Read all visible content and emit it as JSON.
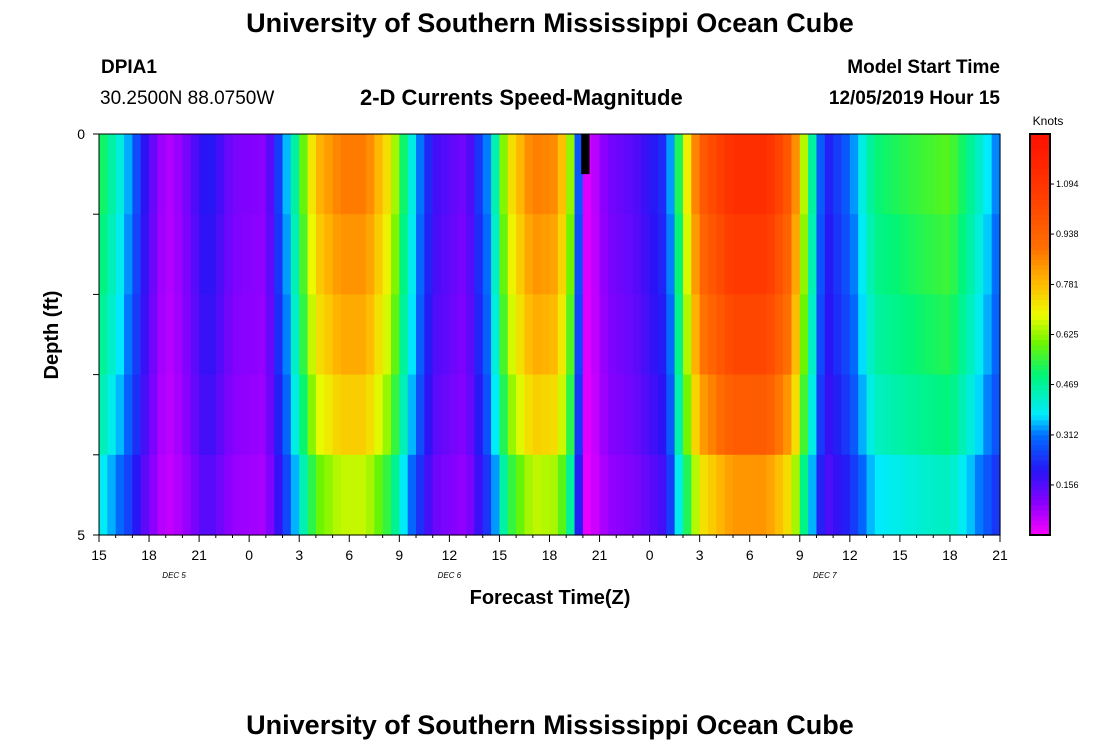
{
  "header": {
    "title_top": "University of Southern Mississippi Ocean Cube",
    "title_bottom": "University of Southern Mississippi Ocean Cube",
    "station_id": "DPIA1",
    "station_coords": "30.2500N 88.0750W",
    "chart_subtitle": "2-D Currents Speed-Magnitude",
    "model_start_label": "Model Start Time",
    "model_start_value": "12/05/2019 Hour 15"
  },
  "chart_data": {
    "type": "heatmap",
    "title": "2-D Currents Speed-Magnitude",
    "xlabel": "Forecast Time(Z)",
    "ylabel": "Depth (ft)",
    "units_label": "Knots",
    "ylim": [
      0,
      5
    ],
    "y_tick_labels": [
      "0",
      "5"
    ],
    "x_tick_labels": [
      "15",
      "18",
      "21",
      "0",
      "3",
      "6",
      "9",
      "12",
      "15",
      "18",
      "21",
      "0",
      "3",
      "6",
      "9",
      "12",
      "15",
      "18",
      "21"
    ],
    "x_tick_hours": [
      0,
      3,
      6,
      9,
      12,
      15,
      18,
      21,
      24,
      27,
      30,
      33,
      36,
      39,
      42,
      45,
      48,
      51,
      54
    ],
    "x_range_hours": [
      0,
      54
    ],
    "day_labels": [
      {
        "text": "DEC 5",
        "hour": 4.5
      },
      {
        "text": "DEC 6",
        "hour": 21
      },
      {
        "text": "DEC 7",
        "hour": 43.5
      }
    ],
    "colorbar": {
      "min": 0.0,
      "max": 1.25,
      "tick_values": [
        0.156,
        0.312,
        0.469,
        0.625,
        0.781,
        0.938,
        1.094
      ],
      "tick_labels": [
        "0.156",
        "0.312",
        "0.469",
        "0.625",
        "0.781",
        "0.938",
        "1.094"
      ]
    },
    "depth_rows": 5,
    "time_keypoints": [
      {
        "h": 0,
        "v": 0.54
      },
      {
        "h": 1.5,
        "v": 0.38
      },
      {
        "h": 3,
        "v": 0.16
      },
      {
        "h": 4,
        "v": 0.06
      },
      {
        "h": 5,
        "v": 0.1
      },
      {
        "h": 6.5,
        "v": 0.22
      },
      {
        "h": 8,
        "v": 0.12
      },
      {
        "h": 10,
        "v": 0.1
      },
      {
        "h": 11.5,
        "v": 0.4
      },
      {
        "h": 13,
        "v": 0.78
      },
      {
        "h": 14.5,
        "v": 0.88
      },
      {
        "h": 16,
        "v": 0.88
      },
      {
        "h": 17.5,
        "v": 0.7
      },
      {
        "h": 18.5,
        "v": 0.45
      },
      {
        "h": 20,
        "v": 0.18
      },
      {
        "h": 22,
        "v": 0.12
      },
      {
        "h": 23.5,
        "v": 0.36
      },
      {
        "h": 24.5,
        "v": 0.7
      },
      {
        "h": 26,
        "v": 0.88
      },
      {
        "h": 27.5,
        "v": 0.85
      },
      {
        "h": 28.5,
        "v": 0.55
      },
      {
        "h": 29,
        "v": 0.02
      },
      {
        "h": 29.5,
        "v": 0.04
      },
      {
        "h": 30.5,
        "v": 0.12
      },
      {
        "h": 32,
        "v": 0.15
      },
      {
        "h": 34,
        "v": 0.24
      },
      {
        "h": 35,
        "v": 0.62
      },
      {
        "h": 36,
        "v": 0.95
      },
      {
        "h": 38,
        "v": 1.12
      },
      {
        "h": 40,
        "v": 1.12
      },
      {
        "h": 41.5,
        "v": 0.95
      },
      {
        "h": 42.5,
        "v": 0.55
      },
      {
        "h": 43.5,
        "v": 0.2
      },
      {
        "h": 45,
        "v": 0.3
      },
      {
        "h": 46.5,
        "v": 0.5
      },
      {
        "h": 49,
        "v": 0.55
      },
      {
        "h": 51,
        "v": 0.58
      },
      {
        "h": 52.5,
        "v": 0.45
      },
      {
        "h": 54,
        "v": 0.3
      }
    ],
    "depth_factors": [
      1.0,
      0.96,
      0.92,
      0.86,
      0.75,
      0.55
    ],
    "missing_data": [
      {
        "hour_start": 28.9,
        "hour_end": 29.4,
        "depth_row": 0
      }
    ]
  }
}
